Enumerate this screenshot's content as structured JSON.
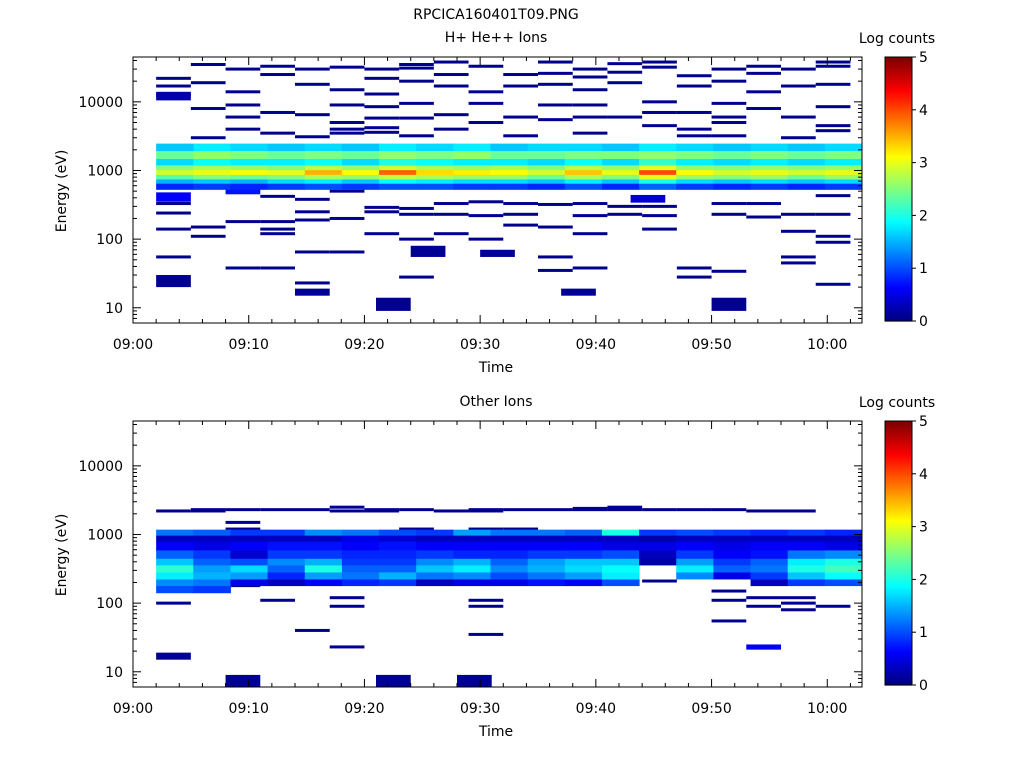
{
  "figure_title": "RPCICA160401T09.PNG",
  "chart_data": [
    {
      "type": "heatmap",
      "title": "H+ He++ Ions",
      "xlabel": "Time",
      "ylabel": "Energy (eV)",
      "x_ticks": [
        "09:00",
        "09:10",
        "09:20",
        "09:30",
        "09:40",
        "09:50",
        "10:00"
      ],
      "y_ticks": [
        "10",
        "100",
        "1000",
        "10000"
      ],
      "y_scale": "log",
      "ylim": [
        6,
        45000
      ],
      "xlim": [
        "09:00",
        "10:03"
      ],
      "colorbar_label": "Log counts",
      "colorbar_ticks": [
        "0",
        "1",
        "2",
        "3",
        "4",
        "5"
      ],
      "colorbar_range": [
        0,
        5
      ],
      "grid": false,
      "time_bins": [
        "09:00",
        "09:03",
        "09:07",
        "09:10",
        "09:13",
        "09:16",
        "09:20",
        "09:23",
        "09:26",
        "09:30",
        "09:33",
        "09:36",
        "09:39",
        "09:43",
        "09:46",
        "09:49",
        "09:52",
        "09:56",
        "09:59",
        "10:02"
      ],
      "cells": [
        {
          "t0": "09:02",
          "t1": "09:05",
          "e0": 20,
          "e1": 30,
          "v": 0.1
        },
        {
          "t0": "09:14",
          "t1": "09:17",
          "e0": 15,
          "e1": 19,
          "v": 0.1
        },
        {
          "t0": "09:21",
          "t1": "09:24",
          "e0": 9,
          "e1": 14,
          "v": 0.1
        },
        {
          "t0": "09:37",
          "t1": "09:40",
          "e0": 15,
          "e1": 19,
          "v": 0.1
        },
        {
          "t0": "09:50",
          "t1": "09:53",
          "e0": 9,
          "e1": 14,
          "v": 0.1
        },
        {
          "t0": "09:24",
          "t1": "09:27",
          "e0": 55,
          "e1": 80,
          "v": 0.1
        },
        {
          "t0": "09:30",
          "t1": "09:33",
          "e0": 55,
          "e1": 70,
          "v": 0.1
        },
        {
          "t0": "09:02",
          "t1": "09:05",
          "e0": 350,
          "e1": 480,
          "v": 0.6
        },
        {
          "t0": "09:08",
          "t1": "09:11",
          "e0": 450,
          "e1": 560,
          "v": 0.7
        },
        {
          "t0": "09:43",
          "t1": "09:46",
          "e0": 340,
          "e1": 440,
          "v": 0.4
        },
        {
          "t0": "09:59",
          "t1": "10:02",
          "e0": 1550,
          "e1": 2000,
          "v": 0.5
        },
        {
          "t0": "09:02",
          "t1": "09:05",
          "e0": 10500,
          "e1": 14000,
          "v": 0.2
        }
      ],
      "band": {
        "t_start": "09:02",
        "t_end": "10:03",
        "levels_per_bin": [
          [
            0.8,
            1.5,
            2.3,
            2.9,
            2.5,
            1.7,
            2.4,
            1.6
          ],
          [
            0.9,
            1.6,
            2.5,
            3.0,
            2.7,
            1.9,
            2.6,
            1.8
          ],
          [
            0.8,
            1.5,
            2.4,
            3.1,
            2.6,
            1.8,
            2.5,
            1.7
          ],
          [
            0.9,
            1.7,
            2.5,
            3.0,
            2.5,
            1.8,
            2.4,
            1.6
          ],
          [
            1.0,
            1.8,
            2.7,
            3.5,
            2.8,
            1.9,
            2.5,
            1.7
          ],
          [
            0.9,
            1.6,
            2.6,
            3.1,
            2.6,
            1.7,
            2.4,
            1.6
          ],
          [
            1.0,
            1.9,
            2.8,
            3.9,
            2.9,
            2.0,
            2.6,
            1.8
          ],
          [
            1.0,
            1.8,
            2.7,
            3.3,
            2.7,
            1.9,
            2.5,
            1.7
          ],
          [
            0.9,
            1.7,
            2.6,
            3.2,
            2.6,
            1.8,
            2.6,
            1.8
          ],
          [
            0.9,
            1.7,
            2.6,
            3.1,
            2.7,
            1.8,
            2.4,
            1.6
          ],
          [
            0.8,
            1.6,
            2.4,
            2.9,
            2.5,
            1.7,
            2.4,
            1.7
          ],
          [
            1.0,
            1.8,
            2.7,
            3.4,
            2.8,
            1.9,
            2.5,
            1.7
          ],
          [
            0.8,
            1.6,
            2.5,
            3.0,
            2.6,
            1.7,
            2.5,
            1.6
          ],
          [
            1.1,
            2.0,
            3.0,
            4.0,
            3.0,
            2.1,
            2.6,
            1.8
          ],
          [
            0.9,
            1.7,
            2.6,
            3.1,
            2.6,
            1.8,
            2.5,
            1.7
          ],
          [
            0.8,
            1.6,
            2.5,
            2.9,
            2.5,
            1.7,
            2.4,
            1.6
          ],
          [
            0.9,
            1.7,
            2.6,
            3.0,
            2.6,
            1.8,
            2.5,
            1.7
          ],
          [
            0.8,
            1.6,
            2.4,
            2.9,
            2.5,
            1.7,
            2.4,
            1.6
          ],
          [
            0.9,
            1.7,
            2.6,
            3.0,
            2.6,
            1.8,
            2.5,
            1.7
          ]
        ],
        "band_energies": [
          600,
          700,
          800,
          950,
          1100,
          1300,
          1700,
          2200
        ]
      },
      "sparse_lines": [
        {
          "t0": "09:02",
          "t1": "09:05",
          "e": [
            22000,
            17000,
            12500,
            330,
            240,
            140,
            55
          ]
        },
        {
          "t0": "09:05",
          "t1": "09:08",
          "e": [
            35000,
            19000,
            8000,
            3000,
            150,
            110
          ]
        },
        {
          "t0": "09:08",
          "t1": "09:11",
          "e": [
            30000,
            14000,
            9000,
            6000,
            4000,
            180,
            38
          ]
        },
        {
          "t0": "09:11",
          "t1": "09:14",
          "e": [
            33000,
            25000,
            7000,
            3500,
            420,
            180,
            140,
            120,
            38
          ]
        },
        {
          "t0": "09:14",
          "t1": "09:17",
          "e": [
            30000,
            18000,
            6500,
            3100,
            380,
            250,
            190,
            65,
            23
          ]
        },
        {
          "t0": "09:17",
          "t1": "09:20",
          "e": [
            32000,
            15000,
            9000,
            5000,
            4000,
            3500,
            500,
            200,
            65
          ]
        },
        {
          "t0": "09:20",
          "t1": "09:23",
          "e": [
            30000,
            22000,
            13000,
            8500,
            5800,
            4200,
            3600,
            290,
            250,
            120
          ]
        },
        {
          "t0": "09:23",
          "t1": "09:26",
          "e": [
            35000,
            31000,
            20000,
            9500,
            5800,
            3200,
            280,
            230,
            100,
            28
          ]
        },
        {
          "t0": "09:26",
          "t1": "09:29",
          "e": [
            38000,
            25000,
            17000,
            6500,
            4000,
            330,
            230,
            120
          ]
        },
        {
          "t0": "09:29",
          "t1": "09:32",
          "e": [
            33000,
            14000,
            9500,
            5000,
            350,
            220,
            100
          ]
        },
        {
          "t0": "09:32",
          "t1": "09:35",
          "e": [
            25000,
            17000,
            6000,
            3200,
            330,
            230,
            160
          ]
        },
        {
          "t0": "09:35",
          "t1": "09:38",
          "e": [
            38000,
            26000,
            18000,
            9000,
            5500,
            320,
            150,
            55,
            35
          ]
        },
        {
          "t0": "09:38",
          "t1": "09:41",
          "e": [
            30000,
            23000,
            15000,
            9000,
            6000,
            3500,
            330,
            220,
            120,
            38
          ]
        },
        {
          "t0": "09:41",
          "t1": "09:44",
          "e": [
            36000,
            27000,
            19000,
            6000,
            300,
            230
          ]
        },
        {
          "t0": "09:44",
          "t1": "09:47",
          "e": [
            38000,
            32000,
            10000,
            7000,
            4500,
            300,
            220,
            140
          ]
        },
        {
          "t0": "09:47",
          "t1": "09:50",
          "e": [
            24000,
            17000,
            7000,
            4000,
            3200,
            38,
            28
          ]
        },
        {
          "t0": "09:50",
          "t1": "09:53",
          "e": [
            30000,
            20000,
            9500,
            6000,
            5000,
            3200,
            330,
            230,
            34
          ]
        },
        {
          "t0": "09:53",
          "t1": "09:56",
          "e": [
            33000,
            26000,
            14000,
            8000,
            330,
            210
          ]
        },
        {
          "t0": "09:56",
          "t1": "09:59",
          "e": [
            30000,
            17000,
            6000,
            3000,
            230,
            130,
            55,
            45
          ]
        },
        {
          "t0": "09:59",
          "t1": "10:02",
          "e": [
            38000,
            33000,
            18000,
            8500,
            4500,
            3800,
            430,
            230,
            110,
            90,
            22
          ]
        }
      ]
    },
    {
      "type": "heatmap",
      "title": "Other Ions",
      "xlabel": "Time",
      "ylabel": "Energy (eV)",
      "x_ticks": [
        "09:00",
        "09:10",
        "09:20",
        "09:30",
        "09:40",
        "09:50",
        "10:00"
      ],
      "y_ticks": [
        "10",
        "100",
        "1000",
        "10000"
      ],
      "y_scale": "log",
      "ylim": [
        6,
        45000
      ],
      "xlim": [
        "09:00",
        "10:03"
      ],
      "colorbar_label": "Log counts",
      "colorbar_ticks": [
        "0",
        "1",
        "2",
        "3",
        "4",
        "5"
      ],
      "colorbar_range": [
        0,
        5
      ],
      "grid": false,
      "cells": [
        {
          "t0": "09:02",
          "t1": "09:05",
          "e0": 15,
          "e1": 19,
          "v": 0.1
        },
        {
          "t0": "09:08",
          "t1": "09:11",
          "e0": 6,
          "e1": 9,
          "v": 0.1
        },
        {
          "t0": "09:21",
          "t1": "09:24",
          "e0": 6,
          "e1": 9,
          "v": 0.1
        },
        {
          "t0": "09:28",
          "t1": "09:31",
          "e0": 6,
          "e1": 9,
          "v": 0.1
        },
        {
          "t0": "09:53",
          "t1": "09:56",
          "e0": 21,
          "e1": 25,
          "v": 0.6
        }
      ],
      "band": {
        "t_start": "09:02",
        "t_end": "10:03",
        "levels_per_bin": [
          [
            1.0,
            1.3,
            1.8,
            2.1,
            1.6,
            1.1,
            0.6,
            0.3,
            1.2
          ],
          [
            0.9,
            1.2,
            1.5,
            1.4,
            1.1,
            0.9,
            0.5,
            0.3,
            1.1
          ],
          [
            0.0,
            0.5,
            1.4,
            1.7,
            1.0,
            0.4,
            0.6,
            0.3,
            0.9
          ],
          [
            0.0,
            0.3,
            0.8,
            1.1,
            1.3,
            0.9,
            0.7,
            0.3,
            0.9
          ],
          [
            0.0,
            0.6,
            1.4,
            2.0,
            1.5,
            0.9,
            0.7,
            0.3,
            1.3
          ],
          [
            0.0,
            0.8,
            1.2,
            1.1,
            0.9,
            0.8,
            0.6,
            0.5,
            1.2
          ],
          [
            0.0,
            0.9,
            1.5,
            1.1,
            0.9,
            0.8,
            0.7,
            0.4,
            1.0
          ],
          [
            0.0,
            0.3,
            1.2,
            1.6,
            1.3,
            0.9,
            0.6,
            0.3,
            0.9
          ],
          [
            0.0,
            0.5,
            1.3,
            1.8,
            1.5,
            0.8,
            0.6,
            0.3,
            1.4
          ],
          [
            0.0,
            0.5,
            1.0,
            1.3,
            1.1,
            0.8,
            0.6,
            0.3,
            1.2
          ],
          [
            0.0,
            0.7,
            1.2,
            1.5,
            1.4,
            0.9,
            0.6,
            0.3,
            1.2
          ],
          [
            0.0,
            0.6,
            1.4,
            1.7,
            1.6,
            0.9,
            0.6,
            0.3,
            1.1
          ],
          [
            0.0,
            1.0,
            1.8,
            1.9,
            1.6,
            1.0,
            0.5,
            0.3,
            2.0
          ],
          [
            0.0,
            0.0,
            0.0,
            0.0,
            0.2,
            0.3,
            0.5,
            0.2,
            0.9
          ],
          [
            0.0,
            0.0,
            1.3,
            1.8,
            1.4,
            0.9,
            0.6,
            0.3,
            1.0
          ],
          [
            0.0,
            0.0,
            0.5,
            1.1,
            0.9,
            0.6,
            0.5,
            0.3,
            0.9
          ],
          [
            0.0,
            0.3,
            0.9,
            1.2,
            1.1,
            0.7,
            0.6,
            0.3,
            0.8
          ],
          [
            0.0,
            0.9,
            1.6,
            2.0,
            1.8,
            1.2,
            0.6,
            0.3,
            0.9
          ],
          [
            0.0,
            1.0,
            1.9,
            2.2,
            2.0,
            1.3,
            0.5,
            0.3,
            0.8
          ]
        ],
        "band_energies": [
          160,
          200,
          250,
          320,
          400,
          500,
          700,
          900,
          1050
        ]
      },
      "sparse_lines": [
        {
          "t0": "09:02",
          "t1": "09:05",
          "e": [
            2200,
            100
          ]
        },
        {
          "t0": "09:05",
          "t1": "09:08",
          "e": [
            2300,
            2200
          ]
        },
        {
          "t0": "09:08",
          "t1": "09:11",
          "e": [
            2300,
            1500,
            1200,
            180
          ]
        },
        {
          "t0": "09:11",
          "t1": "09:14",
          "e": [
            2300,
            1100,
            110
          ]
        },
        {
          "t0": "09:14",
          "t1": "09:17",
          "e": [
            2300,
            1100,
            40
          ]
        },
        {
          "t0": "09:17",
          "t1": "09:20",
          "e": [
            2500,
            2200,
            1100,
            120,
            90,
            23
          ]
        },
        {
          "t0": "09:20",
          "t1": "09:23",
          "e": [
            2300,
            2200,
            1100
          ]
        },
        {
          "t0": "09:23",
          "t1": "09:26",
          "e": [
            2300,
            1200,
            550,
            450
          ]
        },
        {
          "t0": "09:26",
          "t1": "09:29",
          "e": [
            2200,
            900
          ]
        },
        {
          "t0": "09:29",
          "t1": "09:32",
          "e": [
            2300,
            2200,
            1200,
            110,
            90,
            35
          ]
        },
        {
          "t0": "09:32",
          "t1": "09:35",
          "e": [
            2300,
            1200,
            900
          ]
        },
        {
          "t0": "09:35",
          "t1": "09:38",
          "e": [
            2300,
            1100
          ]
        },
        {
          "t0": "09:38",
          "t1": "09:41",
          "e": [
            2400,
            2300,
            1100
          ]
        },
        {
          "t0": "09:41",
          "t1": "09:44",
          "e": [
            2500,
            2300,
            1100
          ]
        },
        {
          "t0": "09:44",
          "t1": "09:47",
          "e": [
            2300,
            1100,
            210
          ]
        },
        {
          "t0": "09:47",
          "t1": "09:50",
          "e": [
            2300,
            1100
          ]
        },
        {
          "t0": "09:50",
          "t1": "09:53",
          "e": [
            2300,
            150,
            110,
            55
          ]
        },
        {
          "t0": "09:53",
          "t1": "09:56",
          "e": [
            2200,
            1100,
            900,
            480,
            120,
            90
          ]
        },
        {
          "t0": "09:56",
          "t1": "09:59",
          "e": [
            2200,
            1100,
            120,
            100,
            80
          ]
        },
        {
          "t0": "09:59",
          "t1": "10:02",
          "e": [
            1100,
            900,
            420,
            90
          ]
        }
      ]
    }
  ]
}
